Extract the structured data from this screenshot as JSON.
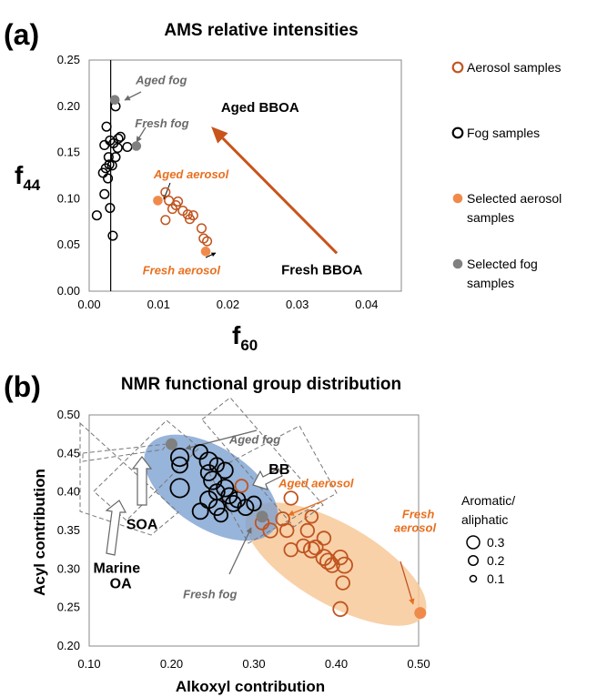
{
  "colors": {
    "aerosol": "#c0541f",
    "selected_aerosol": "#f08a4b",
    "fog": "#000000",
    "selected_fog": "#808080",
    "arrow": "#c8541c",
    "ellipse_blue": "#7a9fd0",
    "ellipse_orange": "#f7c99a",
    "grey_text": "#6b6b6b",
    "orange_text": "#e8701f"
  },
  "panel_a": {
    "label": "(a)",
    "title": "AMS relative intensities",
    "chart_data": {
      "type": "scatter",
      "xlabel": "f",
      "xlabel_sub": "60",
      "ylabel": "f",
      "ylabel_sub": "44",
      "xlim": [
        0,
        0.045
      ],
      "ylim": [
        0,
        0.25
      ],
      "xticks": [
        "0.00",
        "0.01",
        "0.02",
        "0.03",
        "0.04"
      ],
      "xtick_values": [
        0,
        0.01,
        0.02,
        0.03,
        0.04
      ],
      "yticks": [
        "0.00",
        "0.05",
        "0.10",
        "0.15",
        "0.20",
        "0.25"
      ],
      "ytick_values": [
        0,
        0.05,
        0.1,
        0.15,
        0.2,
        0.25
      ],
      "vertical_line_x": 0.0031,
      "grid": false,
      "legend_position": "right",
      "series": [
        {
          "name": "Fog samples",
          "marker": "open-circle",
          "color": "#000000",
          "points": [
            [
              0.0038,
              0.2
            ],
            [
              0.0025,
              0.178
            ],
            [
              0.0022,
              0.158
            ],
            [
              0.003,
              0.163
            ],
            [
              0.0035,
              0.16
            ],
            [
              0.0042,
              0.165
            ],
            [
              0.0045,
              0.167
            ],
            [
              0.0055,
              0.156
            ],
            [
              0.0041,
              0.155
            ],
            [
              0.0028,
              0.145
            ],
            [
              0.0038,
              0.145
            ],
            [
              0.0029,
              0.137
            ],
            [
              0.0033,
              0.136
            ],
            [
              0.0024,
              0.133
            ],
            [
              0.002,
              0.128
            ],
            [
              0.0027,
              0.122
            ],
            [
              0.0022,
              0.105
            ],
            [
              0.003,
              0.09
            ],
            [
              0.0011,
              0.082
            ],
            [
              0.0034,
              0.06
            ]
          ]
        },
        {
          "name": "Aerosol samples",
          "marker": "open-circle",
          "color": "#c0541f",
          "points": [
            [
              0.011,
              0.107
            ],
            [
              0.0115,
              0.098
            ],
            [
              0.0125,
              0.093
            ],
            [
              0.0128,
              0.097
            ],
            [
              0.012,
              0.089
            ],
            [
              0.0135,
              0.087
            ],
            [
              0.0142,
              0.083
            ],
            [
              0.0145,
              0.078
            ],
            [
              0.011,
              0.077
            ],
            [
              0.015,
              0.082
            ],
            [
              0.0162,
              0.068
            ],
            [
              0.0165,
              0.057
            ],
            [
              0.017,
              0.054
            ]
          ]
        },
        {
          "name": "Selected aerosol samples",
          "marker": "filled-circle",
          "color": "#f08a4b",
          "points": [
            [
              0.0099,
              0.098
            ],
            [
              0.0168,
              0.043
            ]
          ]
        },
        {
          "name": "Selected fog samples",
          "marker": "filled-circle",
          "color": "#808080",
          "points": [
            [
              0.0037,
              0.207
            ],
            [
              0.0068,
              0.157
            ]
          ]
        }
      ],
      "annotations": [
        {
          "text": "Aged fog",
          "style": "italic-grey",
          "x": 0.0067,
          "y": 0.224
        },
        {
          "text": "Fresh fog",
          "style": "italic-grey",
          "x": 0.0066,
          "y": 0.177
        },
        {
          "text": "Aged aerosol",
          "style": "italic-orange",
          "x": 0.0093,
          "y": 0.122
        },
        {
          "text": "Fresh aerosol",
          "style": "italic-orange",
          "x": 0.0077,
          "y": 0.018
        },
        {
          "text": "Aged BBOA",
          "style": "bold",
          "x": 0.019,
          "y": 0.194
        },
        {
          "text": "Fresh BBOA",
          "style": "bold",
          "x": 0.0277,
          "y": 0.018
        }
      ],
      "arrow": {
        "from": [
          0.0357,
          0.041
        ],
        "to": [
          0.0176,
          0.178
        ]
      },
      "legend": {
        "entries": [
          {
            "lines": [
              "Aerosol samples"
            ],
            "marker": "open-circle",
            "color": "#c0541f"
          },
          {
            "lines": [
              "Fog samples"
            ],
            "marker": "open-circle",
            "color": "#000000"
          },
          {
            "lines": [
              "Selected aerosol",
              "samples"
            ],
            "marker": "filled-circle",
            "color": "#f08a4b"
          },
          {
            "lines": [
              "Selected fog",
              "samples"
            ],
            "marker": "filled-circle",
            "color": "#808080"
          }
        ]
      }
    }
  },
  "panel_b": {
    "label": "(b)",
    "title": "NMR functional group distribution",
    "chart_data": {
      "type": "scatter",
      "xlabel": "Alkoxyl  contribution",
      "ylabel": "Acyl contribution",
      "xlim": [
        0.1,
        0.5
      ],
      "ylim": [
        0.2,
        0.5
      ],
      "xticks": [
        "0.10",
        "0.20",
        "0.30",
        "0.40",
        "0.50"
      ],
      "xtick_values": [
        0.1,
        0.2,
        0.3,
        0.4,
        0.5
      ],
      "yticks": [
        "0.20",
        "0.25",
        "0.30",
        "0.35",
        "0.40",
        "0.45",
        "0.50"
      ],
      "ytick_values": [
        0.2,
        0.25,
        0.3,
        0.35,
        0.4,
        0.45,
        0.5
      ],
      "grid": false,
      "size_legend": {
        "title_lines": [
          "Aromatic/",
          "aliphatic"
        ],
        "entries": [
          {
            "label": "0.3",
            "size": 0.3
          },
          {
            "label": "0.2",
            "size": 0.2
          },
          {
            "label": "0.1",
            "size": 0.1
          }
        ]
      },
      "series": [
        {
          "name": "Fog samples",
          "marker": "open-circle",
          "color": "#000000",
          "points": [
            [
              0.21,
              0.445,
              0.3
            ],
            [
              0.21,
              0.435,
              0.25
            ],
            [
              0.235,
              0.452,
              0.22
            ],
            [
              0.245,
              0.44,
              0.3
            ],
            [
              0.255,
              0.435,
              0.22
            ],
            [
              0.245,
              0.425,
              0.25
            ],
            [
              0.25,
              0.415,
              0.3
            ],
            [
              0.265,
              0.428,
              0.25
            ],
            [
              0.255,
              0.4,
              0.25
            ],
            [
              0.265,
              0.405,
              0.28
            ],
            [
              0.27,
              0.395,
              0.25
            ],
            [
              0.275,
              0.385,
              0.25
            ],
            [
              0.28,
              0.39,
              0.25
            ],
            [
              0.245,
              0.39,
              0.28
            ],
            [
              0.255,
              0.38,
              0.25
            ],
            [
              0.26,
              0.37,
              0.2
            ],
            [
              0.235,
              0.375,
              0.25
            ],
            [
              0.21,
              0.405,
              0.32
            ],
            [
              0.29,
              0.38,
              0.25
            ],
            [
              0.3,
              0.385,
              0.22
            ]
          ]
        },
        {
          "name": "Aerosol samples",
          "marker": "open-circle",
          "color": "#c0541f",
          "points": [
            [
              0.285,
              0.408,
              0.18
            ],
            [
              0.31,
              0.36,
              0.2
            ],
            [
              0.32,
              0.35,
              0.22
            ],
            [
              0.345,
              0.392,
              0.2
            ],
            [
              0.335,
              0.365,
              0.2
            ],
            [
              0.34,
              0.35,
              0.2
            ],
            [
              0.37,
              0.368,
              0.18
            ],
            [
              0.365,
              0.35,
              0.2
            ],
            [
              0.36,
              0.33,
              0.2
            ],
            [
              0.345,
              0.325,
              0.2
            ],
            [
              0.37,
              0.325,
              0.25
            ],
            [
              0.375,
              0.328,
              0.22
            ],
            [
              0.385,
              0.315,
              0.25
            ],
            [
              0.39,
              0.31,
              0.25
            ],
            [
              0.395,
              0.305,
              0.22
            ],
            [
              0.405,
              0.315,
              0.22
            ],
            [
              0.41,
              0.305,
              0.25
            ],
            [
              0.408,
              0.282,
              0.2
            ],
            [
              0.405,
              0.248,
              0.22
            ],
            [
              0.385,
              0.34,
              0.2
            ]
          ]
        },
        {
          "name": "Selected fog samples",
          "marker": "filled-circle",
          "color": "#808080",
          "points": [
            [
              0.2,
              0.462,
              0.2
            ],
            [
              0.31,
              0.368,
              0.2
            ]
          ]
        },
        {
          "name": "Selected aerosol samples",
          "marker": "filled-circle",
          "color": "#f08a4b",
          "points": [
            [
              0.502,
              0.243,
              0.25
            ]
          ]
        }
      ],
      "annotations": [
        {
          "text": "Aged fog",
          "style": "italic-grey",
          "x": 0.27,
          "y": 0.463
        },
        {
          "text": "BB",
          "style": "bold",
          "x": 0.318,
          "y": 0.423
        },
        {
          "text": "Aged aerosol",
          "style": "italic-orange",
          "x": 0.33,
          "y": 0.406
        },
        {
          "text": "SOA",
          "style": "bold",
          "x": 0.145,
          "y": 0.352
        },
        {
          "text": "Marine",
          "style": "bold",
          "x": 0.105,
          "y": 0.295
        },
        {
          "text": "OA",
          "style": "bold",
          "x": 0.125,
          "y": 0.275
        },
        {
          "text": "Fresh fog",
          "style": "italic-grey",
          "x": 0.214,
          "y": 0.262
        },
        {
          "text": "Fresh",
          "style": "italic-orange",
          "x": 0.48,
          "y": 0.366
        },
        {
          "text": "aerosol",
          "style": "italic-orange",
          "x": 0.47,
          "y": 0.348
        }
      ]
    }
  }
}
